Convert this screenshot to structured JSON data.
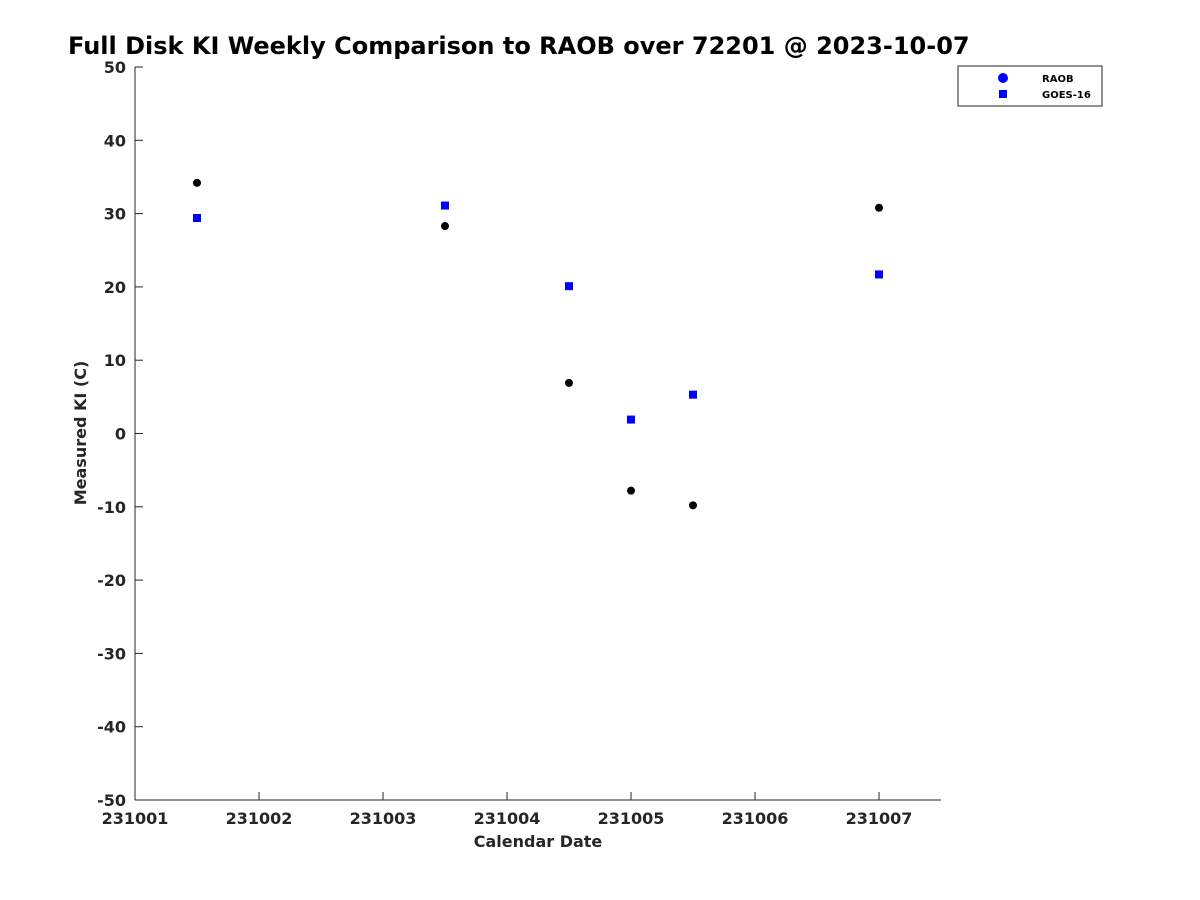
{
  "chart_data": {
    "type": "scatter",
    "title": "Full Disk KI Weekly Comparison to RAOB over 72201 @ 2023-10-07",
    "xlabel": "Calendar Date",
    "ylabel": "Measured KI (C)",
    "xlim": [
      231001,
      231007.5
    ],
    "ylim": [
      -50,
      50
    ],
    "xticks": [
      231001,
      231002,
      231003,
      231004,
      231005,
      231006,
      231007
    ],
    "yticks": [
      50,
      40,
      30,
      20,
      10,
      0,
      -10,
      -20,
      -30,
      -40,
      -50
    ],
    "grid": false,
    "legend_position": "top-right",
    "series": [
      {
        "name": "RAOB",
        "legend_marker": "circle",
        "legend_color": "#0000ff",
        "point_color": "#000000",
        "x": [
          231001.5,
          231003.5,
          231004.5,
          231005.0,
          231005.5,
          231007.0
        ],
        "y": [
          34.2,
          28.3,
          6.9,
          -7.8,
          -9.8,
          30.8
        ]
      },
      {
        "name": "GOES-16",
        "legend_marker": "square",
        "legend_color": "#0000ff",
        "point_color": "#0000ff",
        "x": [
          231001.5,
          231003.5,
          231004.5,
          231005.0,
          231005.5,
          231007.0
        ],
        "y": [
          29.4,
          31.1,
          20.1,
          1.9,
          5.3,
          21.7
        ]
      }
    ]
  }
}
